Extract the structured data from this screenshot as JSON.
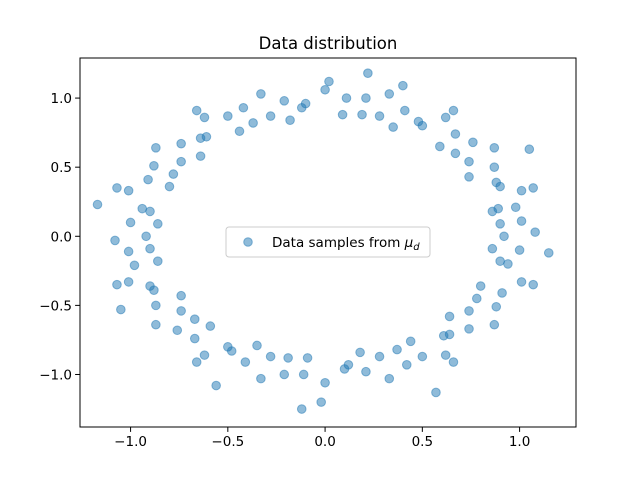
{
  "chart_data": {
    "type": "scatter",
    "title": "Data distribution",
    "xlabel": "",
    "ylabel": "",
    "xlim": [
      -1.26,
      1.29
    ],
    "ylim": [
      -1.38,
      1.29
    ],
    "xticks": [
      -1.0,
      -0.5,
      0.0,
      0.5,
      1.0
    ],
    "yticks": [
      -1.0,
      -0.5,
      0.0,
      0.5,
      1.0
    ],
    "xtick_labels": [
      "−1.0",
      "−0.5",
      "0.0",
      "0.5",
      "1.0"
    ],
    "ytick_labels": [
      "−1.0",
      "−0.5",
      "0.0",
      "0.5",
      "1.0"
    ],
    "grid": false,
    "legend": {
      "placement": "center",
      "label_main": "Data samples from ",
      "label_math": "μ",
      "label_sub": "d"
    },
    "series": [
      {
        "name": "Data samples from μ_d",
        "color": "#1f77b4",
        "alpha": 0.5,
        "points": [
          [
            0.92,
            0.0
          ],
          [
            1.08,
            0.03
          ],
          [
            1.01,
            0.11
          ],
          [
            0.9,
            0.09
          ],
          [
            0.86,
            0.18
          ],
          [
            0.98,
            0.21
          ],
          [
            1.01,
            0.33
          ],
          [
            1.07,
            0.35
          ],
          [
            0.88,
            0.39
          ],
          [
            0.9,
            0.36
          ],
          [
            0.87,
            0.5
          ],
          [
            0.74,
            0.43
          ],
          [
            0.74,
            0.54
          ],
          [
            0.87,
            0.64
          ],
          [
            0.76,
            0.68
          ],
          [
            0.67,
            0.6
          ],
          [
            0.59,
            0.65
          ],
          [
            0.67,
            0.74
          ],
          [
            0.62,
            0.86
          ],
          [
            0.66,
            0.91
          ],
          [
            0.48,
            0.83
          ],
          [
            0.5,
            0.8
          ],
          [
            0.41,
            0.91
          ],
          [
            0.35,
            0.79
          ],
          [
            0.28,
            0.87
          ],
          [
            0.33,
            1.03
          ],
          [
            0.21,
            1.0
          ],
          [
            0.19,
            0.88
          ],
          [
            0.09,
            0.88
          ],
          [
            0.11,
            1.0
          ],
          [
            0.0,
            1.06
          ],
          [
            0.02,
            1.12
          ],
          [
            -0.1,
            0.96
          ],
          [
            -0.12,
            0.93
          ],
          [
            -0.21,
            0.98
          ],
          [
            -0.18,
            0.84
          ],
          [
            -0.28,
            0.87
          ],
          [
            -0.33,
            1.03
          ],
          [
            -0.42,
            0.93
          ],
          [
            -0.37,
            0.82
          ],
          [
            -0.44,
            0.76
          ],
          [
            -0.5,
            0.87
          ],
          [
            -0.62,
            0.86
          ],
          [
            -0.66,
            0.91
          ],
          [
            -0.64,
            0.71
          ],
          [
            -0.61,
            0.72
          ],
          [
            -0.74,
            0.67
          ],
          [
            -0.64,
            0.58
          ],
          [
            -0.74,
            0.54
          ],
          [
            -0.87,
            0.64
          ],
          [
            -0.88,
            0.51
          ],
          [
            -0.78,
            0.45
          ],
          [
            -0.8,
            0.36
          ],
          [
            -0.91,
            0.41
          ],
          [
            -1.01,
            0.33
          ],
          [
            -1.07,
            0.35
          ],
          [
            -0.94,
            0.2
          ],
          [
            -0.9,
            0.18
          ],
          [
            -1.0,
            0.1
          ],
          [
            -0.86,
            0.09
          ],
          [
            -0.92,
            0.0
          ],
          [
            -1.08,
            -0.03
          ],
          [
            -1.01,
            -0.11
          ],
          [
            -0.9,
            -0.09
          ],
          [
            -0.86,
            -0.18
          ],
          [
            -0.98,
            -0.21
          ],
          [
            -1.01,
            -0.33
          ],
          [
            -1.07,
            -0.35
          ],
          [
            -0.88,
            -0.39
          ],
          [
            -0.9,
            -0.36
          ],
          [
            -0.87,
            -0.5
          ],
          [
            -0.74,
            -0.43
          ],
          [
            -0.74,
            -0.54
          ],
          [
            -0.87,
            -0.64
          ],
          [
            -0.76,
            -0.68
          ],
          [
            -0.67,
            -0.6
          ],
          [
            -0.59,
            -0.65
          ],
          [
            -0.67,
            -0.74
          ],
          [
            -0.62,
            -0.86
          ],
          [
            -0.66,
            -0.91
          ],
          [
            -0.48,
            -0.83
          ],
          [
            -0.5,
            -0.8
          ],
          [
            -0.41,
            -0.91
          ],
          [
            -0.35,
            -0.79
          ],
          [
            -0.28,
            -0.87
          ],
          [
            -0.33,
            -1.03
          ],
          [
            -0.21,
            -1.0
          ],
          [
            -0.19,
            -0.88
          ],
          [
            -0.09,
            -0.88
          ],
          [
            -0.11,
            -1.0
          ],
          [
            0.0,
            -1.06
          ],
          [
            -0.02,
            -1.2
          ],
          [
            0.1,
            -0.96
          ],
          [
            0.12,
            -0.93
          ],
          [
            0.21,
            -0.98
          ],
          [
            0.18,
            -0.84
          ],
          [
            0.28,
            -0.87
          ],
          [
            0.33,
            -1.03
          ],
          [
            0.42,
            -0.93
          ],
          [
            0.37,
            -0.82
          ],
          [
            0.44,
            -0.76
          ],
          [
            0.5,
            -0.87
          ],
          [
            0.62,
            -0.86
          ],
          [
            0.66,
            -0.91
          ],
          [
            0.64,
            -0.71
          ],
          [
            0.61,
            -0.72
          ],
          [
            0.74,
            -0.67
          ],
          [
            0.64,
            -0.58
          ],
          [
            0.74,
            -0.54
          ],
          [
            0.87,
            -0.64
          ],
          [
            0.88,
            -0.51
          ],
          [
            0.78,
            -0.45
          ],
          [
            0.8,
            -0.36
          ],
          [
            0.91,
            -0.41
          ],
          [
            1.01,
            -0.33
          ],
          [
            1.07,
            -0.35
          ],
          [
            0.94,
            -0.2
          ],
          [
            0.9,
            -0.18
          ],
          [
            1.0,
            -0.1
          ],
          [
            0.86,
            -0.09
          ],
          [
            -1.17,
            0.23
          ],
          [
            1.15,
            -0.12
          ],
          [
            0.22,
            1.18
          ],
          [
            -0.12,
            -1.25
          ],
          [
            0.89,
            0.2
          ],
          [
            -1.05,
            -0.53
          ],
          [
            1.05,
            0.63
          ],
          [
            0.57,
            -1.13
          ],
          [
            -0.56,
            -1.08
          ],
          [
            0.4,
            1.09
          ]
        ]
      }
    ]
  }
}
